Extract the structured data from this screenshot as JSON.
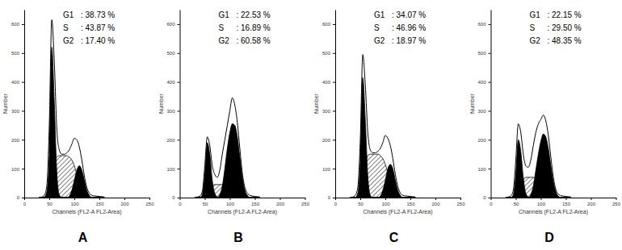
{
  "chart_data": [
    {
      "type": "area",
      "title": "A",
      "x_label": "Channels (FL2-A FL2-Area)",
      "y_label": "Number",
      "x": [
        30,
        35,
        40,
        45,
        50,
        55,
        60,
        65,
        70,
        75,
        80,
        85,
        90,
        95,
        100,
        105,
        110,
        115,
        120,
        125,
        130,
        135,
        140,
        150,
        160
      ],
      "series": [
        {
          "type": "hatched_area",
          "color": "#000000",
          "values": [
            0,
            0,
            0,
            0,
            10,
            60,
            120,
            140,
            145,
            145,
            145,
            145,
            140,
            130,
            110,
            80,
            50,
            25,
            8,
            0,
            0,
            0,
            0,
            0,
            0
          ]
        },
        {
          "type": "area",
          "color": "#000000",
          "values": [
            0,
            0,
            2,
            20,
            150,
            520,
            330,
            90,
            10,
            0,
            0,
            0,
            0,
            0,
            0,
            0,
            0,
            0,
            0,
            0,
            0,
            0,
            0,
            0,
            0
          ]
        },
        {
          "type": "area",
          "color": "#000000",
          "values": [
            0,
            0,
            0,
            0,
            0,
            0,
            0,
            0,
            0,
            0,
            0,
            0,
            5,
            25,
            60,
            95,
            110,
            95,
            60,
            25,
            8,
            0,
            0,
            0,
            0
          ]
        },
        {
          "type": "line",
          "color": "#000000",
          "values": [
            0,
            2,
            8,
            40,
            250,
            615,
            470,
            240,
            165,
            150,
            150,
            155,
            165,
            185,
            205,
            200,
            175,
            130,
            75,
            35,
            15,
            8,
            6,
            4,
            2
          ]
        }
      ],
      "annotations": [
        {
          "label": "G1",
          "text": ": 38.73 %"
        },
        {
          "label": "S",
          "text": ": 43.87 %"
        },
        {
          "label": "G2",
          "text": ": 17.40 %"
        }
      ],
      "xlim": [
        0,
        250
      ],
      "xticks": [
        0,
        50,
        100,
        150,
        200,
        250
      ],
      "ylim": [
        0,
        650
      ],
      "yticks": [
        0,
        100,
        200,
        300,
        400,
        500,
        600
      ]
    },
    {
      "type": "area",
      "title": "B",
      "x_label": "Channels (FL2-A FL2-Area)",
      "y_label": "Number",
      "x": [
        30,
        35,
        40,
        45,
        50,
        55,
        60,
        65,
        70,
        75,
        80,
        85,
        90,
        95,
        100,
        105,
        110,
        115,
        120,
        125,
        130,
        135,
        140,
        150,
        160
      ],
      "series": [
        {
          "type": "hatched_area",
          "color": "#000000",
          "values": [
            0,
            0,
            0,
            0,
            0,
            10,
            30,
            40,
            45,
            45,
            45,
            45,
            40,
            30,
            15,
            5,
            0,
            0,
            0,
            0,
            0,
            0,
            0,
            0,
            0
          ]
        },
        {
          "type": "area",
          "color": "#000000",
          "values": [
            0,
            0,
            0,
            10,
            80,
            190,
            150,
            60,
            15,
            2,
            0,
            0,
            0,
            0,
            0,
            0,
            0,
            0,
            0,
            0,
            0,
            0,
            0,
            0,
            0
          ]
        },
        {
          "type": "area",
          "color": "#000000",
          "values": [
            0,
            0,
            0,
            0,
            0,
            0,
            0,
            0,
            0,
            0,
            10,
            40,
            100,
            170,
            225,
            255,
            250,
            210,
            140,
            70,
            25,
            8,
            0,
            0,
            0
          ]
        },
        {
          "type": "line",
          "color": "#000000",
          "values": [
            0,
            2,
            5,
            20,
            110,
            210,
            180,
            110,
            80,
            70,
            95,
            150,
            200,
            250,
            300,
            345,
            320,
            260,
            170,
            85,
            35,
            15,
            8,
            4,
            2
          ]
        }
      ],
      "annotations": [
        {
          "label": "G1",
          "text": ": 22.53 %"
        },
        {
          "label": "S",
          "text": ": 16.89 %"
        },
        {
          "label": "G2",
          "text": ": 60.58 %"
        }
      ],
      "xlim": [
        0,
        250
      ],
      "xticks": [
        0,
        50,
        100,
        150,
        200,
        250
      ],
      "ylim": [
        0,
        650
      ],
      "yticks": [
        0,
        100,
        200,
        300,
        400,
        500,
        600
      ]
    },
    {
      "type": "area",
      "title": "C",
      "x_label": "Channels (FL2-A FL2-Area)",
      "y_label": "Number",
      "x": [
        30,
        35,
        40,
        45,
        50,
        55,
        60,
        65,
        70,
        75,
        80,
        85,
        90,
        95,
        100,
        105,
        110,
        115,
        120,
        125,
        130,
        135,
        140,
        150,
        160
      ],
      "series": [
        {
          "type": "hatched_area",
          "color": "#000000",
          "values": [
            0,
            0,
            0,
            0,
            10,
            60,
            120,
            145,
            150,
            150,
            150,
            150,
            145,
            135,
            115,
            85,
            55,
            25,
            8,
            0,
            0,
            0,
            0,
            0,
            0
          ]
        },
        {
          "type": "area",
          "color": "#000000",
          "values": [
            0,
            0,
            0,
            15,
            130,
            415,
            270,
            75,
            8,
            0,
            0,
            0,
            0,
            0,
            0,
            0,
            0,
            0,
            0,
            0,
            0,
            0,
            0,
            0,
            0
          ]
        },
        {
          "type": "area",
          "color": "#000000",
          "values": [
            0,
            0,
            0,
            0,
            0,
            0,
            0,
            0,
            0,
            0,
            0,
            0,
            5,
            25,
            60,
            100,
            115,
            100,
            60,
            25,
            8,
            0,
            0,
            0,
            0
          ]
        },
        {
          "type": "line",
          "color": "#000000",
          "values": [
            0,
            2,
            8,
            35,
            200,
            495,
            390,
            225,
            165,
            155,
            155,
            160,
            170,
            190,
            215,
            205,
            180,
            135,
            80,
            38,
            16,
            8,
            6,
            4,
            2
          ]
        }
      ],
      "annotations": [
        {
          "label": "G1",
          "text": ": 34.07 %"
        },
        {
          "label": "S",
          "text": ": 46.96 %"
        },
        {
          "label": "G2",
          "text": ": 18.97 %"
        }
      ],
      "xlim": [
        0,
        250
      ],
      "xticks": [
        0,
        50,
        100,
        150,
        200,
        250
      ],
      "ylim": [
        0,
        650
      ],
      "yticks": [
        0,
        100,
        200,
        300,
        400,
        500,
        600
      ]
    },
    {
      "type": "area",
      "title": "D",
      "x_label": "Channels (FL2-A FL2-Area)",
      "y_label": "Number",
      "x": [
        30,
        35,
        40,
        45,
        50,
        55,
        60,
        65,
        70,
        75,
        80,
        85,
        90,
        95,
        100,
        105,
        110,
        115,
        120,
        125,
        130,
        135,
        140,
        150,
        160
      ],
      "series": [
        {
          "type": "hatched_area",
          "color": "#000000",
          "values": [
            0,
            0,
            0,
            0,
            0,
            10,
            40,
            60,
            70,
            70,
            70,
            70,
            65,
            55,
            40,
            25,
            10,
            0,
            0,
            0,
            0,
            0,
            0,
            0,
            0
          ]
        },
        {
          "type": "area",
          "color": "#000000",
          "values": [
            0,
            0,
            0,
            10,
            80,
            200,
            160,
            70,
            15,
            2,
            0,
            0,
            0,
            0,
            0,
            0,
            0,
            0,
            0,
            0,
            0,
            0,
            0,
            0,
            0
          ]
        },
        {
          "type": "area",
          "color": "#000000",
          "values": [
            0,
            0,
            0,
            0,
            0,
            0,
            0,
            0,
            0,
            0,
            10,
            40,
            95,
            150,
            195,
            220,
            210,
            170,
            110,
            55,
            20,
            5,
            0,
            0,
            0
          ]
        },
        {
          "type": "line",
          "color": "#000000",
          "values": [
            0,
            2,
            6,
            25,
            130,
            255,
            225,
            150,
            110,
            105,
            130,
            180,
            225,
            255,
            270,
            285,
            265,
            215,
            140,
            70,
            28,
            12,
            7,
            4,
            2
          ]
        }
      ],
      "annotations": [
        {
          "label": "G1",
          "text": ": 22.15 %"
        },
        {
          "label": "S",
          "text": ": 29.50 %"
        },
        {
          "label": "G2",
          "text": ": 48.35 %"
        }
      ],
      "xlim": [
        0,
        250
      ],
      "xticks": [
        0,
        50,
        100,
        150,
        200,
        250
      ],
      "ylim": [
        0,
        650
      ],
      "yticks": [
        0,
        100,
        200,
        300,
        400,
        500,
        600
      ]
    }
  ]
}
